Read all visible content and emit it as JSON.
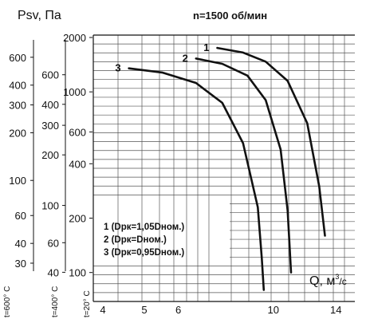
{
  "chart_data": {
    "type": "line",
    "title": "n=1500 об/мин",
    "ylabel_main": "Psv",
    "ylabel_unit": "Па",
    "xlabel": "Q, м",
    "xlabel_exp": "3",
    "xlabel_unit": "/c",
    "x_scale": "log",
    "y_scale": "log",
    "xlim": [
      3.8,
      15.5
    ],
    "ylim": [
      72,
      2000
    ],
    "x_ticks": [
      4,
      5,
      6,
      10,
      14
    ],
    "x_tick_labels": [
      "4",
      "5",
      "6",
      "10",
      "14"
    ],
    "y_axes": [
      {
        "name": "t=20°C",
        "ticks": [
          100,
          200,
          400,
          600,
          1000,
          2000
        ],
        "tick_labels": [
          "100",
          "200",
          "400",
          "600",
          "1000",
          "2000"
        ]
      },
      {
        "name": "t=400°C",
        "ticks": [
          40,
          60,
          100,
          200,
          300,
          400,
          600
        ],
        "tick_labels": [
          "40",
          "60",
          "100",
          "200",
          "300",
          "400",
          "600"
        ]
      },
      {
        "name": "t=600°C",
        "ticks": [
          30,
          40,
          60,
          100,
          200,
          300,
          400,
          600
        ],
        "tick_labels": [
          "30",
          "40",
          "60",
          "100",
          "200",
          "300",
          "400",
          "600"
        ]
      }
    ],
    "temp_labels": [
      "t=600° C",
      "t=400° C",
      "t=20° C"
    ],
    "series": [
      {
        "name": "1",
        "x": [
          7.4,
          8.5,
          9.6,
          10.8,
          12.0,
          12.8,
          13.2
        ],
        "y": [
          1750,
          1650,
          1470,
          1150,
          670,
          300,
          160
        ]
      },
      {
        "name": "2",
        "x": [
          6.6,
          7.6,
          8.7,
          9.6,
          10.4,
          10.8,
          11.0
        ],
        "y": [
          1530,
          1430,
          1230,
          900,
          480,
          220,
          100
        ]
      },
      {
        "name": "3",
        "x": [
          4.6,
          5.5,
          6.6,
          7.6,
          8.5,
          9.2,
          9.4,
          9.5
        ],
        "y": [
          1350,
          1280,
          1120,
          870,
          520,
          230,
          120,
          80
        ]
      }
    ],
    "legend": [
      "1 (Dрк=1,05Dном.)",
      "2 (Dрк=Dном.)",
      "3 (Dрк=0,95Dном.)"
    ],
    "grid": true
  }
}
